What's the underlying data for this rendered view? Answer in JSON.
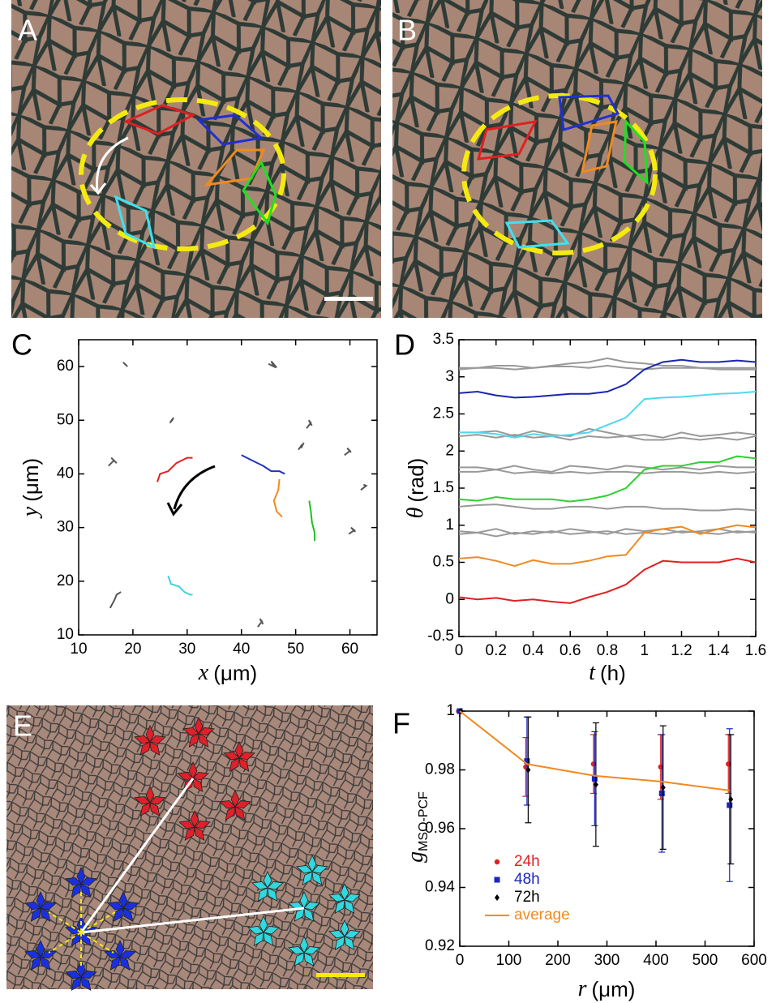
{
  "panels": [
    "A",
    "B",
    "C",
    "D",
    "E",
    "F"
  ],
  "chart_data": [
    {
      "type": "line",
      "xlabel_var": "x",
      "xlabel_unit": "(μm)",
      "ylabel_var": "y",
      "ylabel_unit": "(μm)",
      "xlim": [
        10,
        65
      ],
      "ylim": [
        10,
        65
      ],
      "xticks": [
        10,
        20,
        30,
        40,
        50,
        60
      ],
      "yticks": [
        10,
        20,
        30,
        40,
        50,
        60
      ],
      "series": [
        {
          "color": "#e02020",
          "x": [
            24.5,
            25,
            26.5,
            28,
            29,
            30,
            31
          ],
          "values": [
            38.5,
            40,
            40.5,
            42,
            42.5,
            43,
            43
          ]
        },
        {
          "color": "#2030c0",
          "x": [
            40,
            41,
            43,
            44,
            45.5,
            47,
            48
          ],
          "values": [
            43.5,
            43,
            42,
            41.5,
            40.5,
            40.5,
            40
          ]
        },
        {
          "color": "#f08a20",
          "x": [
            47,
            46.8,
            46,
            46.5,
            47.5
          ],
          "values": [
            39,
            37,
            35,
            33,
            32
          ]
        },
        {
          "color": "#20c020",
          "x": [
            52.5,
            52.8,
            53,
            53.5,
            53.5
          ],
          "values": [
            35,
            33,
            31,
            29,
            27.5
          ]
        },
        {
          "color": "#40d0e0",
          "x": [
            26.5,
            27,
            28.5,
            29.5,
            30.5,
            31
          ],
          "values": [
            21,
            19.5,
            19,
            18,
            17.5,
            17.5
          ]
        },
        {
          "color": "#555555",
          "x": [
            18.2,
            18.8,
            18.5,
            19
          ],
          "values": [
            60.8,
            60.2,
            60.5,
            60
          ]
        },
        {
          "color": "#555555",
          "x": [
            26.8,
            27.4,
            27,
            27.5
          ],
          "values": [
            49.5,
            50.2,
            49.8,
            50.5
          ]
        },
        {
          "color": "#555555",
          "x": [
            15.5,
            16.5,
            16,
            17
          ],
          "values": [
            41.5,
            42.5,
            43,
            42
          ]
        },
        {
          "color": "#555555",
          "x": [
            45,
            46,
            45.5,
            46.5
          ],
          "values": [
            60.5,
            60,
            61,
            59.8
          ]
        },
        {
          "color": "#555555",
          "x": [
            52,
            52.8,
            52.4,
            53
          ],
          "values": [
            48.5,
            49.5,
            50,
            49
          ]
        },
        {
          "color": "#555555",
          "x": [
            50.5,
            51.2,
            51,
            51.5
          ],
          "values": [
            44.5,
            45.5,
            44.8,
            45.8
          ]
        },
        {
          "color": "#555555",
          "x": [
            59,
            60,
            59.5,
            60.2
          ],
          "values": [
            43.5,
            44.3,
            44.8,
            44
          ]
        },
        {
          "color": "#555555",
          "x": [
            62,
            63,
            62.5
          ],
          "values": [
            37,
            37.8,
            38
          ]
        },
        {
          "color": "#555555",
          "x": [
            59.8,
            60.8,
            60.2,
            61
          ],
          "values": [
            28.8,
            29.5,
            30,
            29.2
          ]
        },
        {
          "color": "#555555",
          "x": [
            43,
            43.8,
            43.4,
            44
          ],
          "values": [
            11.5,
            12.5,
            13,
            12
          ]
        },
        {
          "color": "#555555",
          "x": [
            15.8,
            16.6,
            17,
            17.8
          ],
          "values": [
            15,
            16.5,
            17.5,
            18
          ]
        }
      ]
    },
    {
      "type": "line",
      "xlabel_var": "t",
      "xlabel_unit": "(h)",
      "ylabel_var": "θ",
      "ylabel_unit": "(rad)",
      "xlim": [
        0,
        1.6
      ],
      "ylim": [
        -0.5,
        3.5
      ],
      "xticks": [
        0,
        0.2,
        0.4,
        0.6,
        0.8,
        1,
        1.2,
        1.4,
        1.6
      ],
      "yticks": [
        -0.5,
        0,
        0.5,
        1,
        1.5,
        2,
        2.5,
        3,
        3.5
      ],
      "x": [
        0,
        0.1,
        0.2,
        0.3,
        0.4,
        0.5,
        0.6,
        0.7,
        0.8,
        0.9,
        1,
        1.1,
        1.2,
        1.3,
        1.4,
        1.5,
        1.6
      ],
      "series": [
        {
          "color": "#999999",
          "values": [
            3.1,
            3.12,
            3.15,
            3.15,
            3.12,
            3.15,
            3.18,
            3.2,
            3.25,
            3.2,
            3.18,
            3.15,
            3.15,
            3.12,
            3.1,
            3.1,
            3.1
          ]
        },
        {
          "color": "#999999",
          "values": [
            3.12,
            3.12,
            3.12,
            3.1,
            3.12,
            3.14,
            3.14,
            3.12,
            3.15,
            3.12,
            3.1,
            3.12,
            3.12,
            3.12,
            3.12,
            3.12,
            3.12
          ]
        },
        {
          "color": "#999999",
          "values": [
            2.25,
            2.25,
            2.27,
            2.2,
            2.27,
            2.22,
            2.2,
            2.3,
            2.25,
            2.2,
            2.22,
            2.18,
            2.25,
            2.2,
            2.22,
            2.25,
            2.22
          ]
        },
        {
          "color": "#999999",
          "values": [
            2.2,
            2.22,
            2.18,
            2.22,
            2.18,
            2.2,
            2.15,
            2.2,
            2.18,
            2.2,
            2.15,
            2.15,
            2.18,
            2.15,
            2.18,
            2.15,
            2.2
          ]
        },
        {
          "color": "#999999",
          "values": [
            1.78,
            1.78,
            1.75,
            1.8,
            1.75,
            1.72,
            1.8,
            1.78,
            1.75,
            1.8,
            1.78,
            1.75,
            1.78,
            1.75,
            1.8,
            1.78,
            1.78
          ]
        },
        {
          "color": "#999999",
          "values": [
            1.72,
            1.72,
            1.75,
            1.7,
            1.72,
            1.7,
            1.72,
            1.7,
            1.72,
            1.72,
            1.7,
            1.72,
            1.72,
            1.7,
            1.72,
            1.7,
            1.72
          ]
        },
        {
          "color": "#999999",
          "values": [
            1.25,
            1.27,
            1.28,
            1.25,
            1.22,
            1.22,
            1.25,
            1.25,
            1.22,
            1.25,
            1.25,
            1.22,
            1.22,
            1.2,
            1.2,
            1.22,
            1.2
          ]
        },
        {
          "color": "#999999",
          "values": [
            0.92,
            0.9,
            0.95,
            0.88,
            0.92,
            0.9,
            0.95,
            0.92,
            0.88,
            0.95,
            0.92,
            0.95,
            0.9,
            0.92,
            0.95,
            0.9,
            0.92
          ]
        },
        {
          "color": "#999999",
          "values": [
            0.88,
            0.9,
            0.85,
            0.9,
            0.88,
            0.92,
            0.88,
            0.9,
            0.92,
            0.88,
            0.9,
            0.88,
            0.92,
            0.9,
            0.88,
            0.92,
            0.9
          ]
        },
        {
          "color": "#1a25b0",
          "values": [
            2.78,
            2.8,
            2.75,
            2.72,
            2.73,
            2.75,
            2.77,
            2.77,
            2.8,
            2.9,
            3.1,
            3.2,
            3.23,
            3.2,
            3.2,
            3.22,
            3.2
          ]
        },
        {
          "color": "#50d8f0",
          "values": [
            2.25,
            2.25,
            2.23,
            2.18,
            2.23,
            2.2,
            2.22,
            2.25,
            2.35,
            2.45,
            2.7,
            2.72,
            2.73,
            2.75,
            2.77,
            2.78,
            2.8
          ]
        },
        {
          "color": "#30d030",
          "values": [
            1.35,
            1.33,
            1.38,
            1.35,
            1.35,
            1.35,
            1.32,
            1.35,
            1.4,
            1.5,
            1.75,
            1.8,
            1.8,
            1.85,
            1.85,
            1.93,
            1.9
          ]
        },
        {
          "color": "#f08a20",
          "values": [
            0.55,
            0.57,
            0.52,
            0.45,
            0.53,
            0.48,
            0.48,
            0.52,
            0.58,
            0.6,
            0.9,
            0.95,
            0.98,
            0.88,
            0.95,
            1.0,
            0.97
          ]
        },
        {
          "color": "#e02020",
          "values": [
            0.03,
            0.0,
            0.02,
            -0.02,
            0.0,
            -0.03,
            -0.05,
            0.03,
            0.1,
            0.2,
            0.4,
            0.52,
            0.5,
            0.5,
            0.5,
            0.55,
            0.5
          ]
        }
      ]
    },
    {
      "type": "scatter",
      "xlabel_var": "r",
      "xlabel_unit": "(μm)",
      "ylabel_var": "g",
      "ylabel_sub": "MSO-PCF",
      "xlim": [
        0,
        600
      ],
      "ylim": [
        0.92,
        1
      ],
      "xticks": [
        0,
        100,
        200,
        300,
        400,
        500,
        600
      ],
      "yticks": [
        0.92,
        0.94,
        0.96,
        0.98,
        1
      ],
      "x": [
        0,
        137,
        275,
        412,
        550
      ],
      "series": [
        {
          "name": "24h",
          "color": "#e02020",
          "marker": "circle",
          "values": [
            1,
            0.981,
            0.982,
            0.981,
            0.982
          ],
          "errors": [
            0,
            0.01,
            0.01,
            0.011,
            0.01
          ]
        },
        {
          "name": "48h",
          "color": "#1a25c0",
          "marker": "square",
          "values": [
            1,
            0.983,
            0.977,
            0.972,
            0.968
          ],
          "errors": [
            0,
            0.015,
            0.016,
            0.02,
            0.026
          ]
        },
        {
          "name": "72h",
          "color": "#000000",
          "marker": "diamond",
          "values": [
            1,
            0.98,
            0.975,
            0.974,
            0.97
          ],
          "errors": [
            0,
            0.018,
            0.021,
            0.021,
            0.022
          ]
        },
        {
          "name": "average",
          "color": "#f08a20",
          "values": [
            1,
            0.982,
            0.978,
            0.976,
            0.973
          ]
        }
      ]
    }
  ]
}
